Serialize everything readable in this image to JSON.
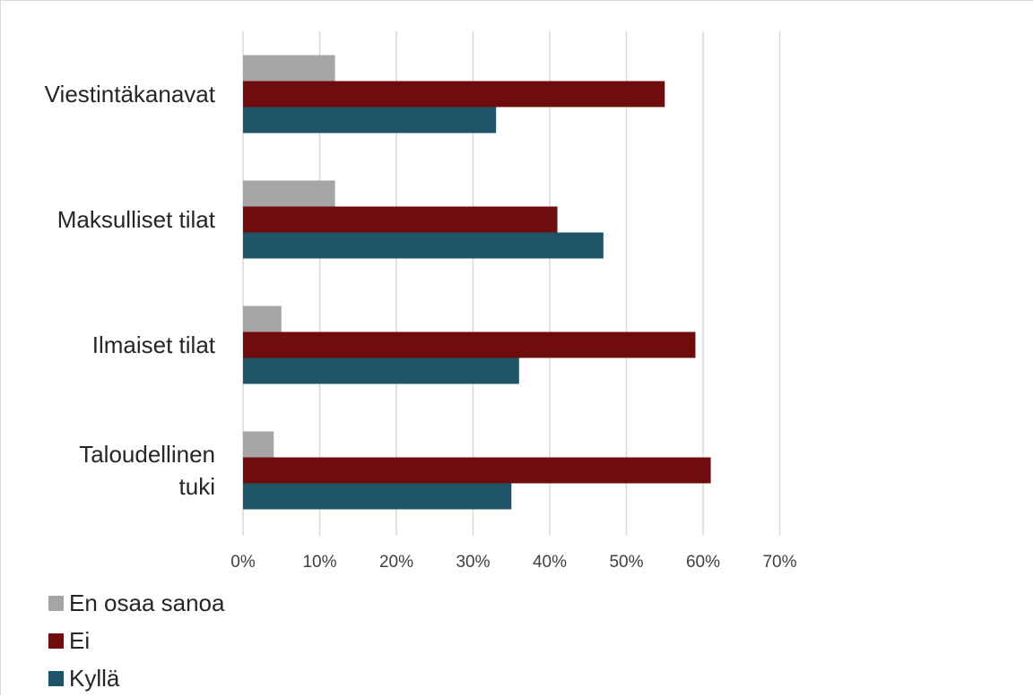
{
  "chart_data": {
    "type": "bar",
    "orientation": "horizontal",
    "categories": [
      "Viestintäkanavat",
      "Maksulliset tilat",
      "Ilmaiset tilat",
      "Taloudellinen tuki"
    ],
    "category_lines": [
      [
        "Viestintäkanavat"
      ],
      [
        "Maksulliset tilat"
      ],
      [
        "Ilmaiset tilat"
      ],
      [
        "Taloudellinen",
        "tuki"
      ]
    ],
    "series": [
      {
        "name": "En osaa sanoa",
        "color": "#a5a5a5",
        "values": [
          12,
          12,
          5,
          4
        ]
      },
      {
        "name": "Ei",
        "color": "#6f0c0e",
        "values": [
          55,
          41,
          59,
          61
        ]
      },
      {
        "name": "Kyllä",
        "color": "#1f5468",
        "values": [
          33,
          47,
          36,
          35
        ]
      }
    ],
    "x_ticks": [
      "0%",
      "10%",
      "20%",
      "30%",
      "40%",
      "50%",
      "60%",
      "70%"
    ],
    "xlim": [
      0,
      70
    ],
    "grid": true,
    "legend_position": "bottom-left",
    "title": "",
    "xlabel": "",
    "ylabel": ""
  }
}
